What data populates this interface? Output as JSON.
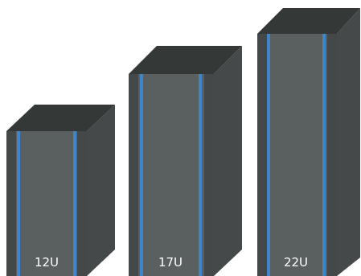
{
  "racks": [
    {
      "label": "12U"
    },
    {
      "label": "17U"
    },
    {
      "label": "22U"
    }
  ],
  "colors": {
    "front": "#5a5f60",
    "front_dark": "#444849",
    "side": "#45494a",
    "top": "#343837",
    "rail": "#3f86c8",
    "label": "#ffffff"
  }
}
